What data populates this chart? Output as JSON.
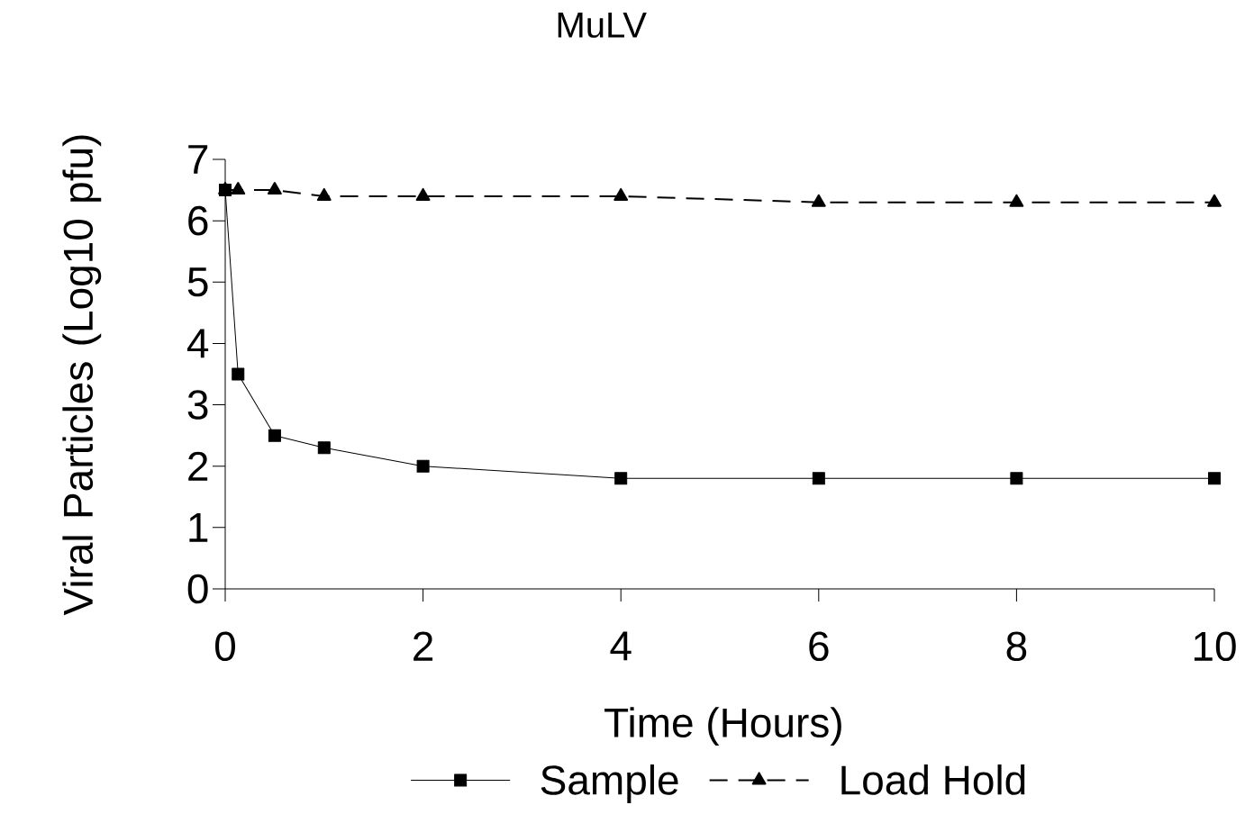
{
  "chart_data": {
    "type": "line",
    "title": "MuLV",
    "xlabel": "Time (Hours)",
    "ylabel": "Viral Particles (Log10 pfu)",
    "xlim": [
      0,
      10
    ],
    "ylim": [
      0,
      7
    ],
    "xticks": [
      0,
      2,
      4,
      6,
      8,
      10
    ],
    "yticks": [
      0,
      1,
      2,
      3,
      4,
      5,
      6,
      7
    ],
    "legend": "bottom",
    "series": [
      {
        "name": "Sample",
        "color": "#000000",
        "marker": "square",
        "line_style": "solid",
        "x": [
          0,
          0.13,
          0.5,
          1,
          2,
          4,
          6,
          8,
          10
        ],
        "values": [
          6.5,
          3.5,
          2.5,
          2.3,
          2.0,
          1.8,
          1.8,
          1.8,
          1.8
        ]
      },
      {
        "name": "Load Hold",
        "color": "#000000",
        "marker": "triangle",
        "line_style": "dashed",
        "x": [
          0,
          0.13,
          0.5,
          1,
          2,
          4,
          6,
          8,
          10
        ],
        "values": [
          6.5,
          6.5,
          6.5,
          6.4,
          6.4,
          6.4,
          6.3,
          6.3,
          6.3
        ]
      }
    ]
  }
}
